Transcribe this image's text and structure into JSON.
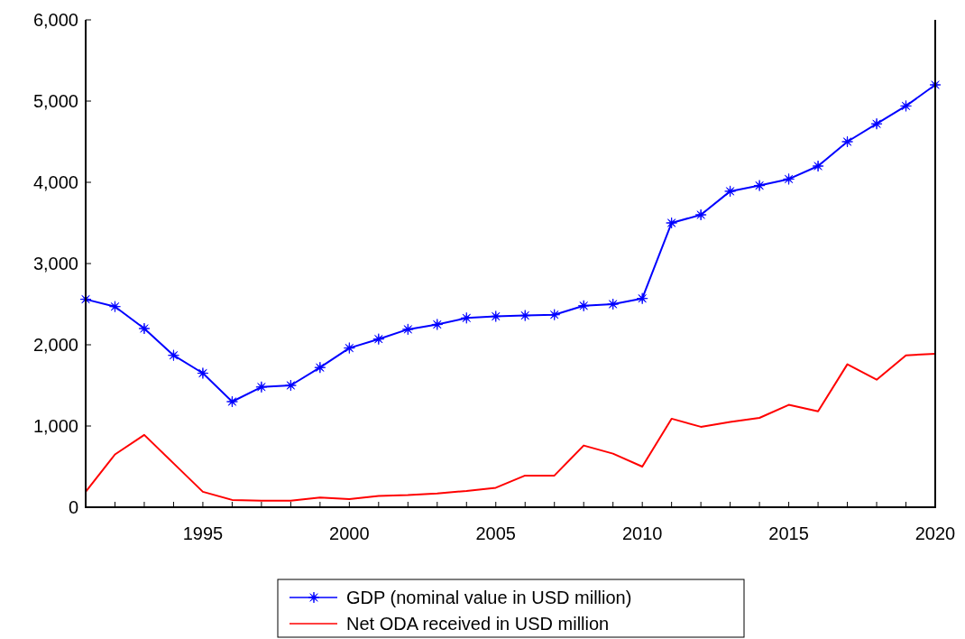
{
  "chart_data": {
    "type": "line",
    "x": [
      1991,
      1992,
      1993,
      1994,
      1995,
      1996,
      1997,
      1998,
      1999,
      2000,
      2001,
      2002,
      2003,
      2004,
      2005,
      2006,
      2007,
      2008,
      2009,
      2010,
      2011,
      2012,
      2013,
      2014,
      2015,
      2016,
      2017,
      2018,
      2019,
      2020
    ],
    "series": [
      {
        "name": "GDP (nominal value in USD million)",
        "color": "#0000ff",
        "marker": "star",
        "values": [
          2560,
          2470,
          2200,
          1870,
          1650,
          1300,
          1480,
          1500,
          1720,
          1960,
          2070,
          2190,
          2250,
          2330,
          2350,
          2360,
          2370,
          2480,
          2500,
          2570,
          3500,
          3600,
          3890,
          3960,
          4040,
          4200,
          4500,
          4720,
          4940,
          5200
        ]
      },
      {
        "name": "Net ODA received in USD million",
        "color": "#ff0000",
        "marker": "none",
        "values": [
          190,
          650,
          890,
          540,
          190,
          90,
          80,
          80,
          120,
          100,
          140,
          150,
          170,
          200,
          240,
          390,
          390,
          760,
          660,
          500,
          1090,
          990,
          1050,
          1100,
          1260,
          1180,
          1760,
          1570,
          1870,
          1890
        ]
      }
    ],
    "xlim": [
      1991,
      2020
    ],
    "xticks": [
      {
        "value": 1991,
        "label": null
      },
      {
        "value": 1992,
        "label": null
      },
      {
        "value": 1993,
        "label": null
      },
      {
        "value": 1994,
        "label": null
      },
      1995,
      {
        "value": 1996,
        "label": null
      },
      {
        "value": 1997,
        "label": null
      },
      {
        "value": 1998,
        "label": null
      },
      {
        "value": 1999,
        "label": null
      },
      2000,
      {
        "value": 2001,
        "label": null
      },
      {
        "value": 2002,
        "label": null
      },
      {
        "value": 2003,
        "label": null
      },
      {
        "value": 2004,
        "label": null
      },
      2005,
      {
        "value": 2006,
        "label": null
      },
      {
        "value": 2007,
        "label": null
      },
      {
        "value": 2008,
        "label": null
      },
      {
        "value": 2009,
        "label": null
      },
      2010,
      {
        "value": 2011,
        "label": null
      },
      {
        "value": 2012,
        "label": null
      },
      {
        "value": 2013,
        "label": null
      },
      {
        "value": 2014,
        "label": null
      },
      2015,
      {
        "value": 2016,
        "label": null
      },
      {
        "value": 2017,
        "label": null
      },
      {
        "value": 2018,
        "label": null
      },
      {
        "value": 2019,
        "label": null
      },
      2020
    ],
    "ylim": [
      0,
      6000
    ],
    "yticks": [
      {
        "value": 0,
        "label": "0"
      },
      {
        "value": 1000,
        "label": "1,000"
      },
      {
        "value": 2000,
        "label": "2,000"
      },
      {
        "value": 3000,
        "label": "3,000"
      },
      {
        "value": 4000,
        "label": "4,000"
      },
      {
        "value": 5000,
        "label": "5,000"
      },
      {
        "value": 6000,
        "label": "6,000"
      }
    ],
    "grid": false,
    "legend": "bottom",
    "line_style": "solid"
  }
}
